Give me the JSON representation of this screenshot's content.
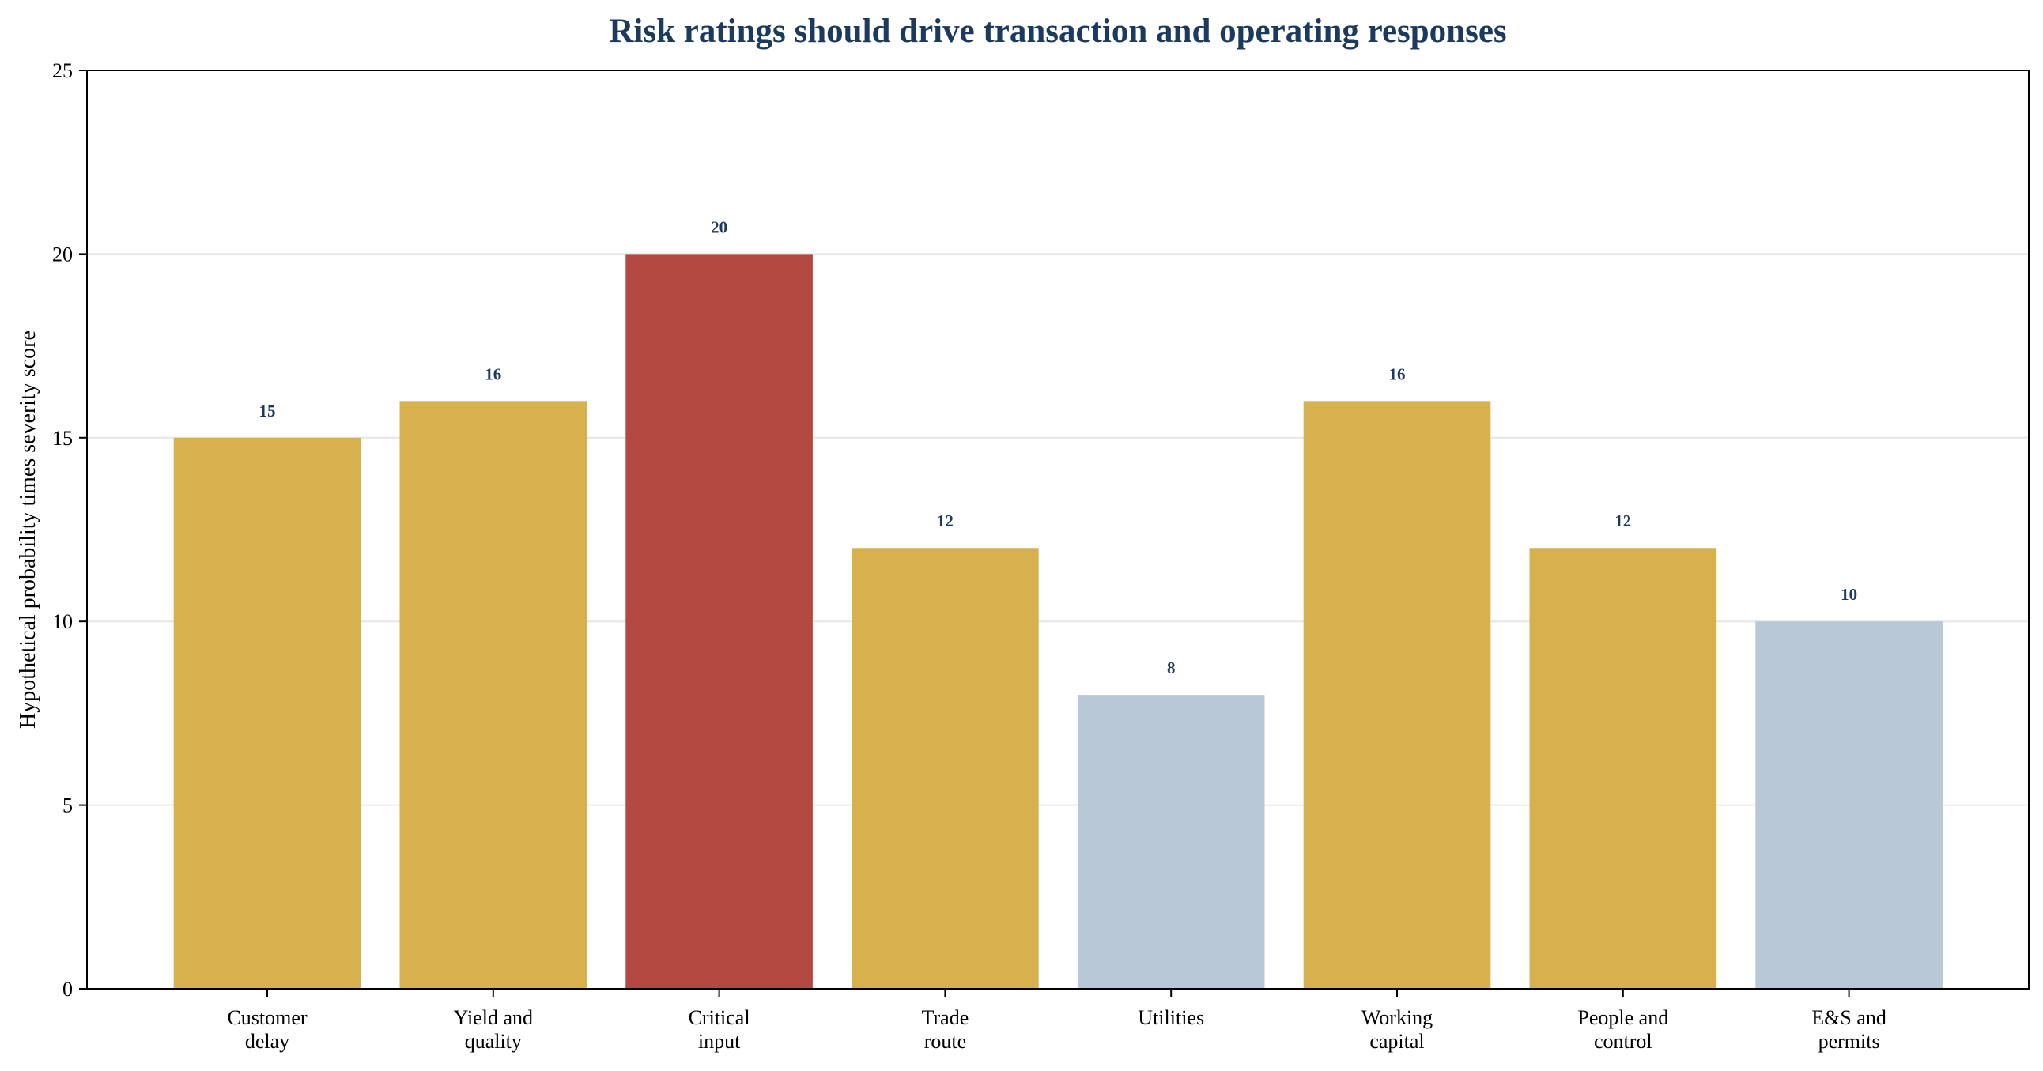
{
  "chart_data": {
    "type": "bar",
    "title": "Risk ratings should drive transaction and operating responses",
    "xlabel": "",
    "ylabel": "Hypothetical probability times severity score",
    "ylim": [
      0,
      25
    ],
    "yticks": [
      "0",
      "5",
      "10",
      "15",
      "20",
      "25"
    ],
    "grid": "horizontal",
    "categories": [
      [
        "Customer",
        "delay"
      ],
      [
        "Yield and",
        "quality"
      ],
      [
        "Critical",
        "input"
      ],
      [
        "Trade",
        "route"
      ],
      [
        "Utilities"
      ],
      [
        "Working",
        "capital"
      ],
      [
        "People and",
        "control"
      ],
      [
        "E&S and",
        "permits"
      ]
    ],
    "values": [
      15,
      16,
      20,
      12,
      8,
      16,
      12,
      10
    ],
    "value_labels": [
      "15",
      "16",
      "20",
      "12",
      "8",
      "16",
      "12",
      "10"
    ],
    "bar_colors": [
      "#d6b14e",
      "#d6b14e",
      "#b34941",
      "#d6b14e",
      "#b9c8d7",
      "#d6b14e",
      "#d6b14e",
      "#b9c8d7"
    ],
    "colors": {
      "title": "#1c3a5e",
      "value_label": "#1c3a5e",
      "axis": "#000000",
      "grid": "#e6e6e6"
    }
  }
}
